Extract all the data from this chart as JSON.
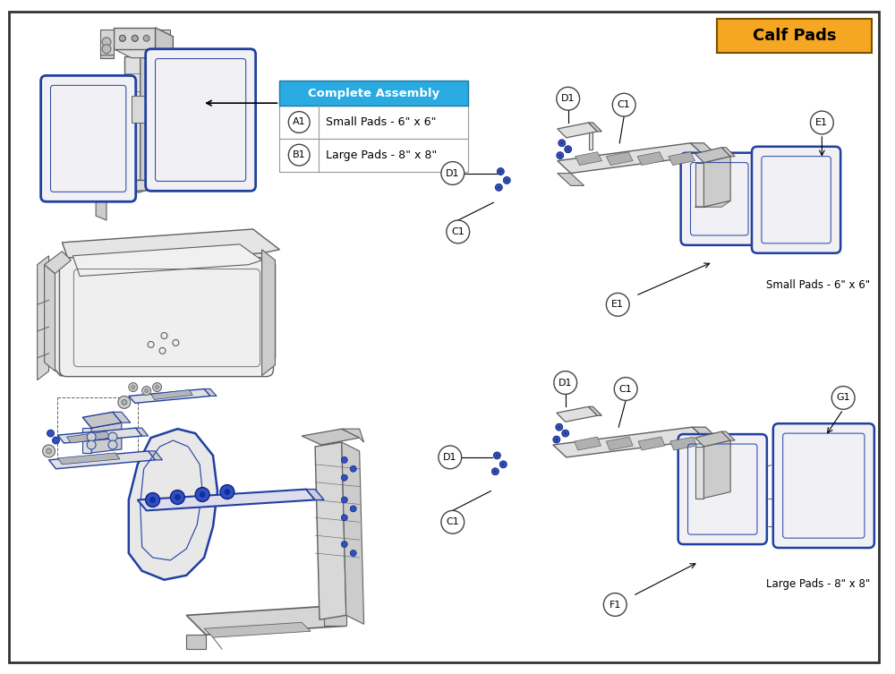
{
  "title": "Calf Pads",
  "title_bg": "#F5A623",
  "title_border": "#7a5000",
  "border_color": "#222222",
  "bg_color": "#ffffff",
  "blue": "#2040A0",
  "light_blue": "#4060C0",
  "legend_header": "Complete Assembly",
  "legend_header_bg": "#29ABE2",
  "legend_items": [
    {
      "label": "A1",
      "text": "Small Pads - 6\" x 6\""
    },
    {
      "label": "B1",
      "text": "Large Pads - 8\" x 8\""
    }
  ],
  "small_pads_label": "Small Pads - 6\" x 6\"",
  "large_pads_label": "Large Pads - 8\" x 8\"",
  "dg": "#606060",
  "lg": "#aaaaaa",
  "vlg": "#e0e0e0",
  "mwg": "#cccccc",
  "fc_pad": "#f0f0f5"
}
